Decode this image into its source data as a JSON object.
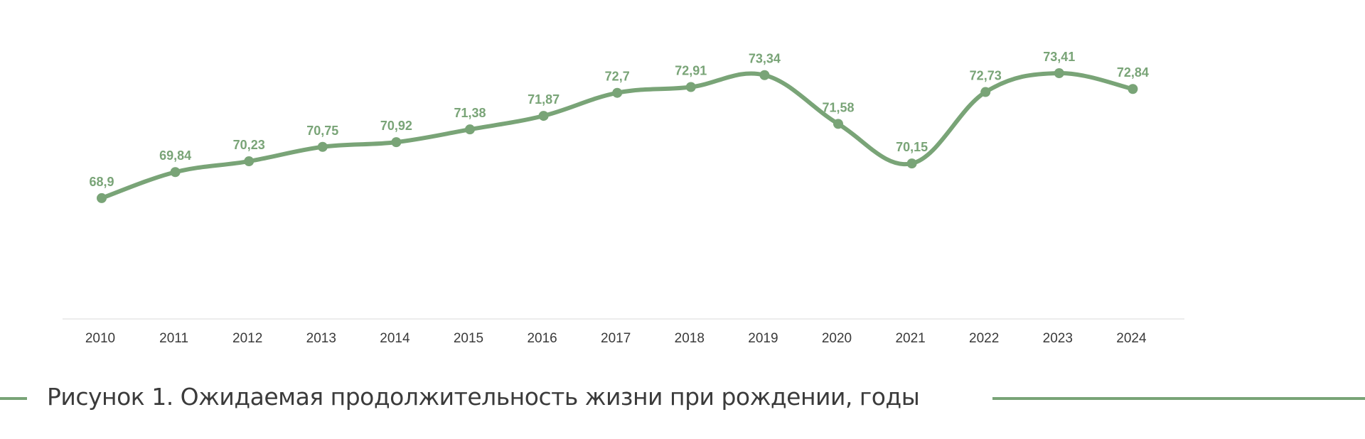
{
  "chart_data": {
    "type": "line",
    "title": "",
    "xlabel": "",
    "ylabel": "",
    "categories": [
      "2010",
      "2011",
      "2012",
      "2013",
      "2014",
      "2015",
      "2016",
      "2017",
      "2018",
      "2019",
      "2020",
      "2021",
      "2022",
      "2023",
      "2024"
    ],
    "series": [
      {
        "values": [
          68.9,
          69.84,
          70.23,
          70.75,
          70.92,
          71.38,
          71.87,
          72.7,
          72.91,
          73.34,
          71.58,
          70.15,
          72.73,
          73.41,
          72.84
        ],
        "labels": [
          "68,9",
          "69,84",
          "70,23",
          "70,75",
          "70,92",
          "71,38",
          "71,87",
          "72,7",
          "72,91",
          "73,34",
          "71,58",
          "70,15",
          "72,73",
          "73,41",
          "72,84"
        ],
        "color": "#79a477"
      }
    ],
    "ylim": [
      66,
      74
    ],
    "grid": false,
    "legend": "none"
  },
  "caption": {
    "text": "Рисунок 1. Ожидаемая продолжительность жизни при рождении, годы"
  },
  "colors": {
    "accent": "#79a477",
    "axis": "#e6e6e6",
    "text": "#3b3b3b"
  }
}
